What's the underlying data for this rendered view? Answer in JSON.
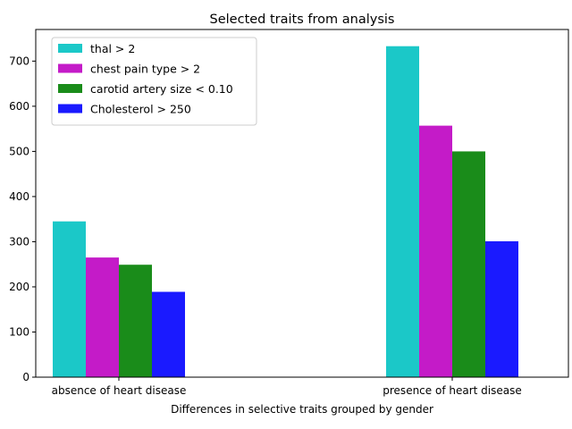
{
  "chart_data": {
    "type": "bar",
    "title": "Selected traits from analysis",
    "xlabel": "Differences in selective traits grouped by gender",
    "ylabel": "",
    "categories": [
      "absence of heart disease",
      "presence of heart disease"
    ],
    "series": [
      {
        "name": "thal > 2",
        "color": "#1bc8c8",
        "values": [
          345,
          733
        ]
      },
      {
        "name": "chest pain type > 2",
        "color": "#c41bc8",
        "values": [
          265,
          557
        ]
      },
      {
        "name": "carotid artery size < 0.10",
        "color": "#1a8c1a",
        "values": [
          249,
          500
        ]
      },
      {
        "name": "Cholesterol > 250",
        "color": "#1a1aff",
        "values": [
          189,
          301
        ]
      }
    ],
    "yticks": [
      0,
      100,
      200,
      300,
      400,
      500,
      600,
      700
    ],
    "ylim": [
      0,
      770
    ],
    "grid": false,
    "legend_position": "top-left"
  }
}
